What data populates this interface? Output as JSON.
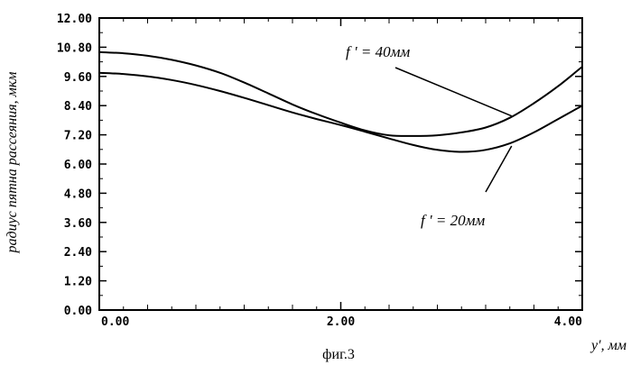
{
  "chart_data": {
    "type": "line",
    "title": "",
    "xlabel": "y', мм",
    "ylabel": "радиус пятна рассеяния, мкм",
    "xlim": [
      0,
      4
    ],
    "ylim": [
      0,
      12
    ],
    "xticks": [
      0,
      2,
      4
    ],
    "xtick_labels": [
      "0.00",
      "2.00",
      "4.00"
    ],
    "yticks": [
      0,
      1.2,
      2.4,
      3.6,
      4.8,
      6,
      7.2,
      8.4,
      9.6,
      10.8,
      12
    ],
    "ytick_labels": [
      "0.00",
      "1.20",
      "2.40",
      "3.60",
      "4.80",
      "6.00",
      "7.20",
      "8.40",
      "9.60",
      "10.80",
      "12.00"
    ],
    "grid": false,
    "legend": "none",
    "series": [
      {
        "x": [
          0,
          0.2,
          0.4,
          0.6,
          0.8,
          1.0,
          1.2,
          1.4,
          1.6,
          1.8,
          2.0,
          2.2,
          2.4,
          2.6,
          2.8,
          3.0,
          3.2,
          3.4,
          3.6,
          3.8,
          4.0
        ],
        "values": [
          9.75,
          9.7,
          9.6,
          9.45,
          9.25,
          9.0,
          8.72,
          8.42,
          8.12,
          7.85,
          7.6,
          7.33,
          7.05,
          6.78,
          6.58,
          6.5,
          6.58,
          6.85,
          7.3,
          7.85,
          8.4
        ]
      },
      {
        "x": [
          0,
          0.2,
          0.4,
          0.6,
          0.8,
          1.0,
          1.2,
          1.4,
          1.6,
          1.8,
          2.0,
          2.2,
          2.4,
          2.6,
          2.8,
          3.0,
          3.2,
          3.4,
          3.6,
          3.8,
          4.0
        ],
        "values": [
          10.6,
          10.55,
          10.45,
          10.28,
          10.05,
          9.75,
          9.35,
          8.9,
          8.45,
          8.05,
          7.7,
          7.38,
          7.18,
          7.15,
          7.18,
          7.3,
          7.5,
          7.9,
          8.5,
          9.2,
          10.0
        ]
      }
    ],
    "annotations": [
      {
        "text": "f ' = 40мм",
        "series": 1,
        "x": 3.4
      },
      {
        "text": "f ' = 20мм",
        "series": 0,
        "x": 3.4
      }
    ]
  },
  "caption": "фиг.3"
}
